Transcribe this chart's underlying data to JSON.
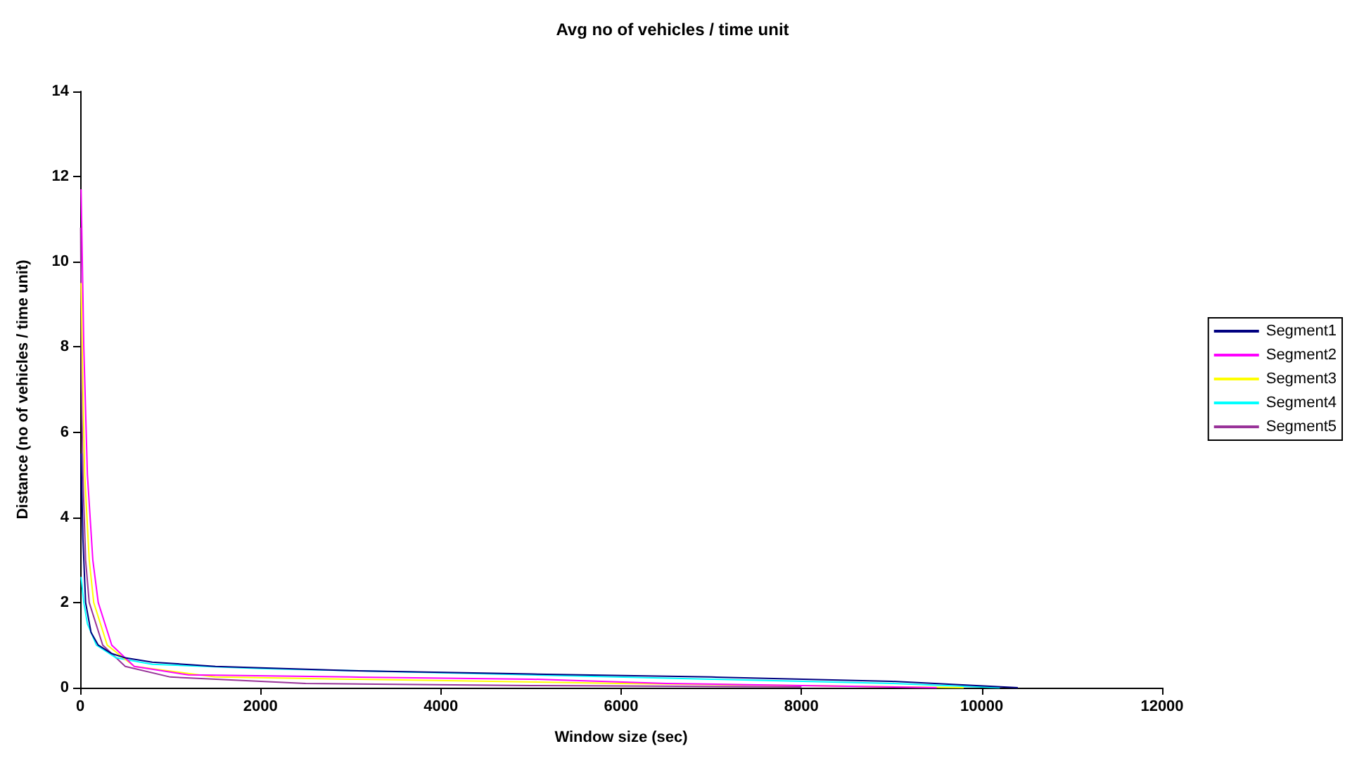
{
  "chart_data": {
    "type": "line",
    "title": "Avg no of vehicles / time unit",
    "xlabel": "Window size (sec)",
    "ylabel": "Distance (no of vehicles / time unit)",
    "xlim": [
      0,
      12000
    ],
    "xticks": [
      0,
      2000,
      4000,
      6000,
      8000,
      10000,
      12000
    ],
    "ylim": [
      0,
      14
    ],
    "yticks": [
      0,
      2,
      4,
      6,
      8,
      10,
      12,
      14
    ],
    "grid": false,
    "legend": "right",
    "marker": "none",
    "line_style": "solid",
    "series": [
      {
        "name": "Segment1",
        "color": "#000080",
        "x": [
          10,
          30,
          60,
          120,
          200,
          350,
          500,
          800,
          1500,
          3000,
          5000,
          7000,
          9000,
          10400
        ],
        "values": [
          5.5,
          3.5,
          2,
          1.3,
          1,
          0.8,
          0.7,
          0.6,
          0.5,
          0.4,
          0.32,
          0.25,
          0.15,
          0
        ]
      },
      {
        "name": "Segment2",
        "color": "#ff00ff",
        "x": [
          10,
          40,
          80,
          140,
          200,
          350,
          600,
          1200,
          3000,
          5000,
          6500,
          8000,
          9500
        ],
        "values": [
          11.7,
          8,
          5,
          3,
          2,
          1,
          0.5,
          0.3,
          0.25,
          0.2,
          0.1,
          0.05,
          0
        ]
      },
      {
        "name": "Segment3",
        "color": "#ffff00",
        "x": [
          10,
          30,
          50,
          100,
          150,
          300,
          600,
          1500,
          3000,
          6000,
          8000,
          9800
        ],
        "values": [
          9.5,
          7,
          5,
          3,
          2,
          1,
          0.5,
          0.25,
          0.2,
          0.1,
          0.05,
          0
        ]
      },
      {
        "name": "Segment4",
        "color": "#00ffff",
        "x": [
          10,
          40,
          80,
          180,
          400,
          800,
          2000,
          3000,
          5000,
          7000,
          9000,
          10200
        ],
        "values": [
          2.6,
          2,
          1.5,
          1,
          0.7,
          0.55,
          0.45,
          0.4,
          0.3,
          0.2,
          0.1,
          0
        ]
      },
      {
        "name": "Segment5",
        "color": "#993399",
        "x": [
          5,
          15,
          30,
          60,
          100,
          250,
          500,
          1000,
          2500,
          5000,
          8000
        ],
        "values": [
          10.8,
          7,
          5,
          3,
          2,
          1,
          0.5,
          0.25,
          0.1,
          0.05,
          0.02
        ]
      }
    ]
  }
}
